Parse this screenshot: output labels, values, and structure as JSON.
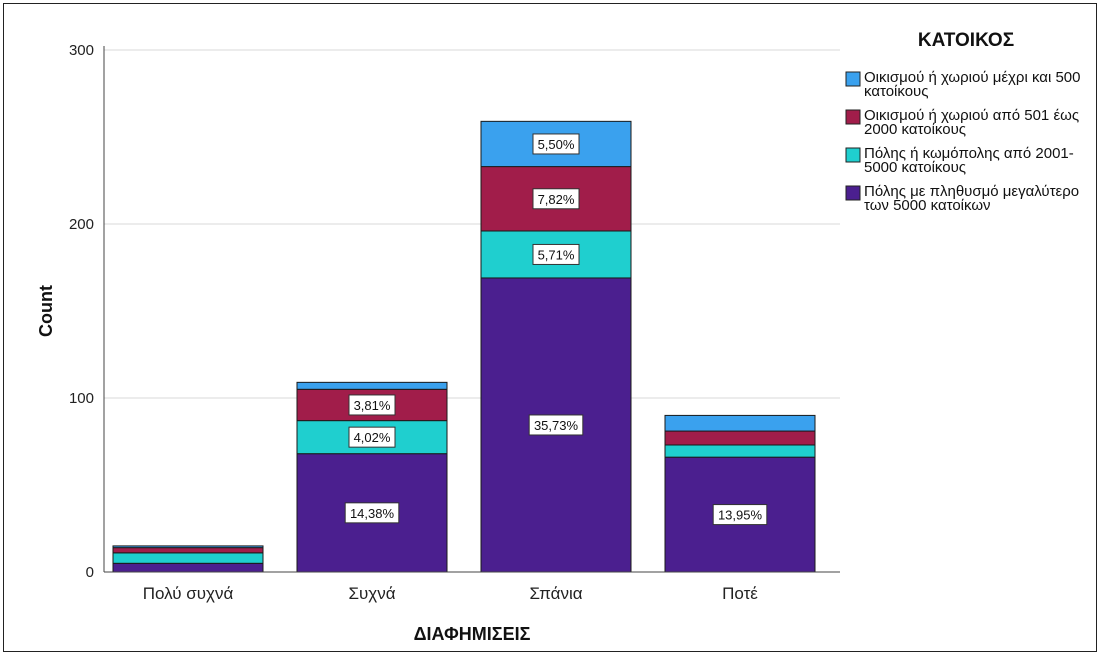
{
  "chart_data": {
    "type": "bar",
    "stacked": true,
    "title": "",
    "xlabel": "ΔΙΑΦΗΜΙΣΕΙΣ",
    "ylabel": "Count",
    "ylim": [
      0,
      300
    ],
    "yticks": [
      "0",
      "100",
      "200",
      "300"
    ],
    "grid": true,
    "legend_title": "ΚΑΤΟΙΚΟΣ",
    "legend_position": "right",
    "categories": [
      "Πολύ συχνά",
      "Συχνά",
      "Σπάνια",
      "Ποτέ"
    ],
    "series": [
      {
        "name_lines": [
          "Πόλης με πληθυσμό μεγαλύτερο",
          "των 5000 κατοίκων"
        ],
        "color": "#4b1f8f",
        "values": [
          5,
          68,
          169,
          66
        ],
        "labels": [
          "",
          "14,38%",
          "35,73%",
          "13,95%"
        ]
      },
      {
        "name_lines": [
          "Πόλης ή κωμόπολης από 2001-",
          "5000 κατοίκους"
        ],
        "color": "#1fcfcf",
        "values": [
          6,
          19,
          27,
          7
        ],
        "labels": [
          "",
          "4,02%",
          "5,71%",
          ""
        ]
      },
      {
        "name_lines": [
          "Οικισμού ή χωριού από 501 έως",
          "2000 κατοίκους"
        ],
        "color": "#a11d4a",
        "values": [
          3,
          18,
          37,
          8
        ],
        "labels": [
          "",
          "3,81%",
          "7,82%",
          ""
        ]
      },
      {
        "name_lines": [
          "Οικισμού ή χωριού μέχρι και 500",
          "κατοίκους"
        ],
        "color": "#3aa1ee",
        "values": [
          1,
          4,
          26,
          9
        ],
        "labels": [
          "",
          "",
          "5,50%",
          ""
        ]
      }
    ]
  }
}
